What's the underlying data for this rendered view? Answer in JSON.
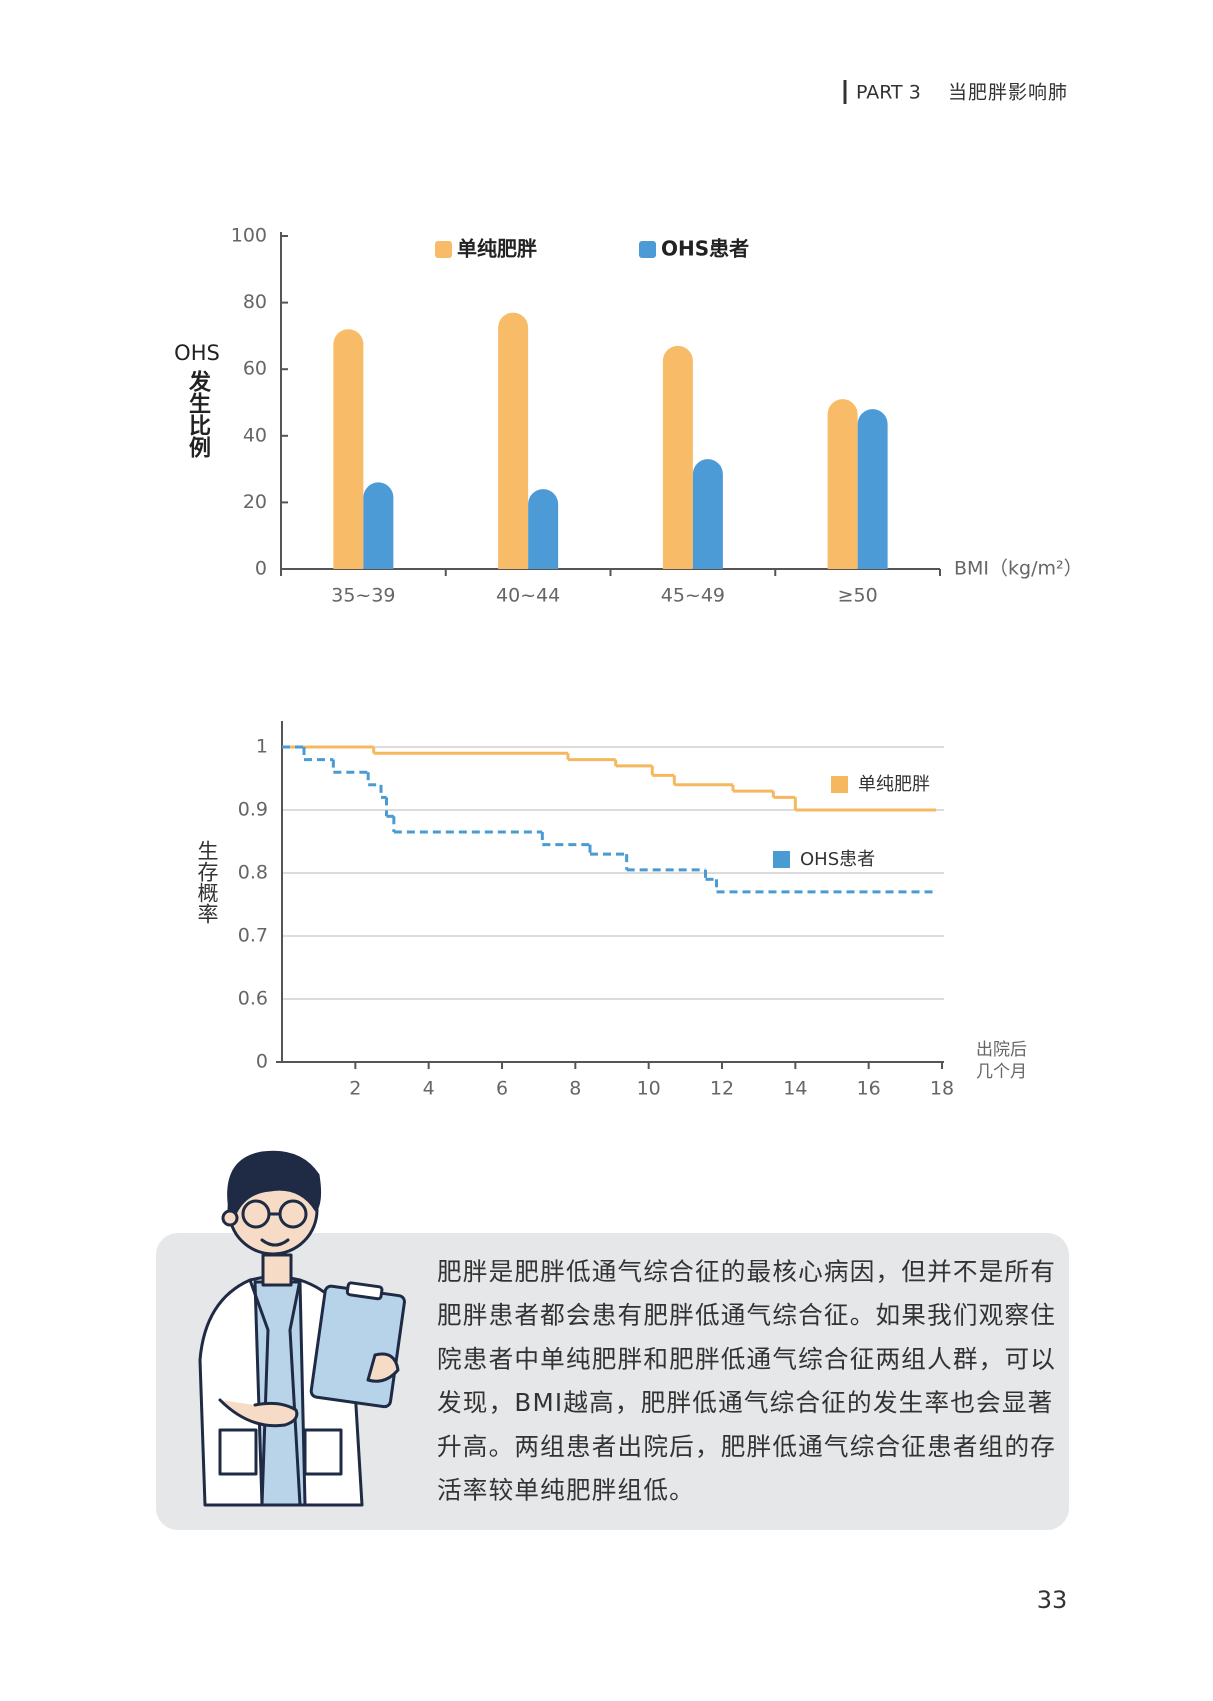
{
  "header": {
    "part": "PART 3",
    "title": "当肥胖影响肺"
  },
  "chart_data": [
    {
      "type": "bar",
      "ylabel": [
        "OHS",
        "发生比例"
      ],
      "xlabel": "BMI（kg/m²）",
      "categories": [
        "35~39",
        "40~44",
        "45~49",
        "≥50"
      ],
      "series": [
        {
          "name": "单纯肥胖",
          "color": "#f8bb68",
          "values": [
            72,
            77,
            67,
            51
          ]
        },
        {
          "name": "OHS患者",
          "color": "#4c9bd6",
          "values": [
            26,
            24,
            33,
            48
          ]
        }
      ],
      "ylim": [
        0,
        100
      ],
      "yticks": [
        0,
        20,
        40,
        60,
        80,
        100
      ],
      "legend": "top"
    },
    {
      "type": "line",
      "step": true,
      "ylabel": "生存概率",
      "xlabel": [
        "出院后",
        "几个月"
      ],
      "series": [
        {
          "name": "单纯肥胖",
          "color": "#f6b85e",
          "dash": false,
          "x": [
            0,
            2.5,
            7.8,
            9.1,
            10.1,
            10.7,
            12.3,
            13.4,
            14.0
          ],
          "values": [
            1,
            0.99,
            0.98,
            0.97,
            0.955,
            0.94,
            0.93,
            0.92,
            0.9
          ]
        },
        {
          "name": "OHS患者",
          "color": "#4a9ad4",
          "dash": true,
          "x": [
            0,
            0.6,
            1.4,
            2.35,
            2.7,
            2.85,
            3.05,
            7.1,
            8.4,
            9.4,
            11.55,
            11.85
          ],
          "values": [
            1,
            0.98,
            0.96,
            0.94,
            0.92,
            0.89,
            0.865,
            0.845,
            0.83,
            0.805,
            0.79,
            0.77
          ]
        }
      ],
      "xlim": [
        0,
        18
      ],
      "xticks": [
        2,
        4,
        6,
        8,
        10,
        12,
        14,
        16,
        18
      ],
      "ylim": [
        0,
        1
      ],
      "ybreak": 0.5,
      "yticks": [
        0,
        0.6,
        0.7,
        0.8,
        0.9,
        1
      ],
      "grid": true
    }
  ],
  "note": {
    "lines": [
      "肥胖是肥胖低通气综合征的最核心病因，但并不是所有",
      "肥胖患者都会患有肥胖低通气综合征。如果我们观察住",
      "院患者中单纯肥胖和肥胖低通气综合征两组人群，可以",
      "发现，BMI越高，肥胖低通气综合征的发生率也会显著",
      "升高。两组患者出院后，肥胖低通气综合征患者组的存",
      "活率较单纯肥胖组低。"
    ]
  },
  "page_number": "33"
}
